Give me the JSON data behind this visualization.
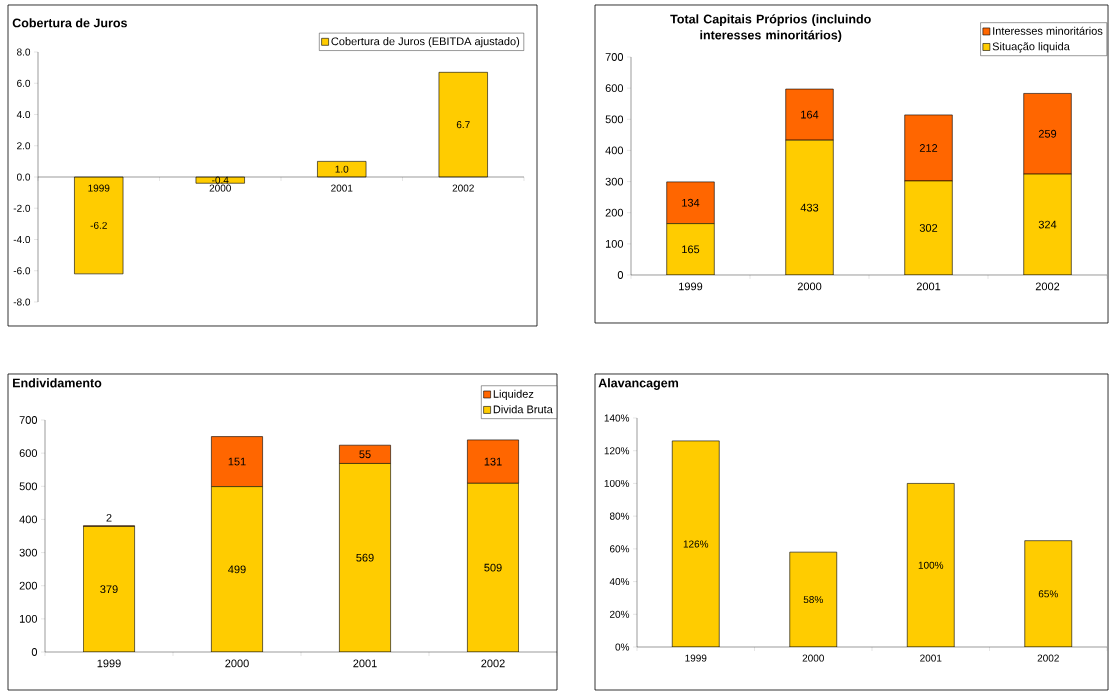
{
  "chart_data": [
    {
      "type": "bar",
      "title": "Cobertura de Juros",
      "categories": [
        "1999",
        "2000",
        "2001",
        "2002"
      ],
      "series": [
        {
          "name": "Cobertura de Juros (EBITDA ajustado)",
          "color": "#ffcc00",
          "values": [
            -6.2,
            -0.4,
            1.0,
            6.7
          ],
          "value_labels": [
            "-6.2",
            "-0.4",
            "1.0",
            "6.7"
          ]
        }
      ],
      "ylim": [
        -8,
        8
      ],
      "yticks": [
        {
          "value": -8,
          "label": "-8.0"
        },
        {
          "value": -6,
          "label": "-6.0"
        },
        {
          "value": -4,
          "label": "-4.0"
        },
        {
          "value": -2,
          "label": "-2.0"
        },
        {
          "value": 0,
          "label": "0.0"
        },
        {
          "value": 2,
          "label": "2.0"
        },
        {
          "value": 4,
          "label": "4.0"
        },
        {
          "value": 6,
          "label": "6.0"
        },
        {
          "value": 8,
          "label": "8.0"
        }
      ],
      "legend": "top right"
    },
    {
      "type": "bar",
      "title": "Total Capitais Próprios (incluindo interesses minoritários)",
      "categories": [
        "1999",
        "2000",
        "2001",
        "2002"
      ],
      "stacked": true,
      "series": [
        {
          "name": "Situação liquida",
          "color": "#ffcc00",
          "values": [
            165,
            433,
            302,
            324
          ]
        },
        {
          "name": "Interesses minoritários",
          "color": "#ff6600",
          "values": [
            134,
            164,
            212,
            259
          ]
        }
      ],
      "ylim": [
        0,
        700
      ],
      "yticks": [
        0,
        100,
        200,
        300,
        400,
        500,
        600,
        700
      ],
      "data_labels": true,
      "legend": "top right"
    },
    {
      "type": "bar",
      "title": "Endividamento",
      "categories": [
        "1999",
        "2000",
        "2001",
        "2002"
      ],
      "stacked": true,
      "series": [
        {
          "name": "Divida Bruta",
          "color": "#ffcc00",
          "values": [
            379,
            499,
            569,
            509
          ]
        },
        {
          "name": "Liquidez",
          "color": "#ff6600",
          "values": [
            2,
            151,
            55,
            131
          ]
        }
      ],
      "ylim": [
        0,
        700
      ],
      "yticks": [
        0,
        100,
        200,
        300,
        400,
        500,
        600,
        700
      ],
      "data_labels": true,
      "legend": "top right"
    },
    {
      "type": "bar",
      "title": "Alavancagem",
      "categories": [
        "1999",
        "2000",
        "2001",
        "2002"
      ],
      "series": [
        {
          "color": "#ffcc00",
          "values": [
            126,
            58,
            100,
            65
          ],
          "value_labels": [
            "126%",
            "58%",
            "100%",
            "65%"
          ]
        }
      ],
      "ylim": [
        0,
        140
      ],
      "yticks": [
        {
          "value": 0,
          "label": "0%"
        },
        {
          "value": 20,
          "label": "20%"
        },
        {
          "value": 40,
          "label": "40%"
        },
        {
          "value": 60,
          "label": "60%"
        },
        {
          "value": 80,
          "label": "80%"
        },
        {
          "value": 100,
          "label": "100%"
        },
        {
          "value": 120,
          "label": "120%"
        },
        {
          "value": 140,
          "label": "140%"
        }
      ]
    }
  ]
}
